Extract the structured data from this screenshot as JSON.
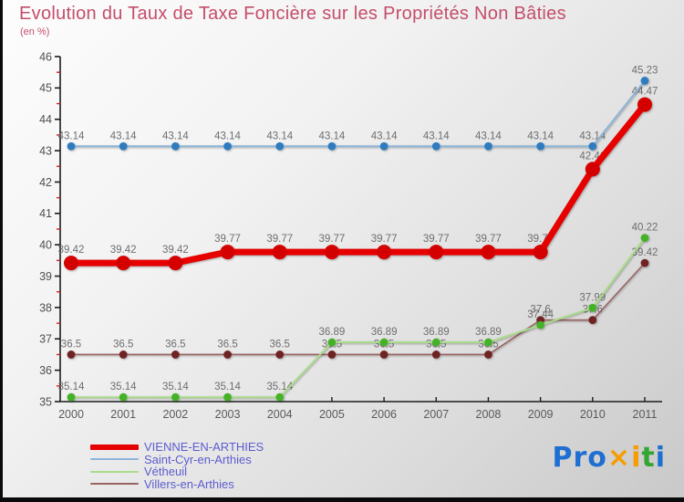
{
  "header": {
    "title": "Evolution du Taux de Taxe Foncière sur les Propriétés Non Bâties",
    "subtitle": "(en %)"
  },
  "chart_data": {
    "type": "line",
    "x": [
      2000,
      2001,
      2002,
      2003,
      2004,
      2005,
      2006,
      2007,
      2008,
      2009,
      2010,
      2011
    ],
    "ylim": [
      35,
      46
    ],
    "y_ticks": [
      35,
      36,
      37,
      38,
      39,
      40,
      41,
      42,
      43,
      44,
      45,
      46
    ],
    "y_minor_step": 0.5,
    "grid": false,
    "legend_position": "bottom-left",
    "series": [
      {
        "name": "VIENNE-EN-ARTHIES",
        "color": "#e60000",
        "dot_color": "#d40000",
        "width": 7,
        "values": [
          39.42,
          39.42,
          39.42,
          39.77,
          39.77,
          39.77,
          39.77,
          39.77,
          39.77,
          39.77,
          42.41,
          44.47
        ]
      },
      {
        "name": "Saint-Cyr-en-Arthies",
        "color": "#8db6d9",
        "dot_color": "#2e7bbf",
        "width": 2,
        "values": [
          43.14,
          43.14,
          43.14,
          43.14,
          43.14,
          43.14,
          43.14,
          43.14,
          43.14,
          43.14,
          43.14,
          45.23
        ]
      },
      {
        "name": "Vétheuil",
        "color": "#a9dc8a",
        "dot_color": "#44b226",
        "width": 2,
        "values": [
          35.14,
          35.14,
          35.14,
          35.14,
          35.14,
          36.89,
          36.89,
          36.89,
          36.89,
          37.44,
          37.99,
          40.22
        ]
      },
      {
        "name": "Villers-en-Arthies",
        "color": "#9b6262",
        "dot_color": "#702323",
        "width": 1.6,
        "values": [
          36.5,
          36.5,
          36.5,
          36.5,
          36.5,
          36.5,
          36.5,
          36.5,
          36.5,
          37.6,
          37.6,
          39.42
        ]
      }
    ]
  },
  "colors": {
    "title": "#c44d6b",
    "legend_text": "#5c5ccf",
    "data_label": "#6e6e6e",
    "axis": "#1c1c1c",
    "minor_tick": "#cc2222",
    "tick_label": "#4f4f4f"
  },
  "logo": {
    "name": "Proxiti",
    "letters": [
      {
        "ch": "P",
        "color": "#1e6fd2"
      },
      {
        "ch": "r",
        "color": "#1e6fd2"
      },
      {
        "ch": "o",
        "color": "#1e6fd2"
      },
      {
        "ch": "×",
        "color": "#f59d00"
      },
      {
        "ch": "i",
        "color": "#f59d00"
      },
      {
        "ch": "t",
        "color": "#33a532"
      },
      {
        "ch": "i",
        "color": "#1e6fd2"
      }
    ]
  }
}
